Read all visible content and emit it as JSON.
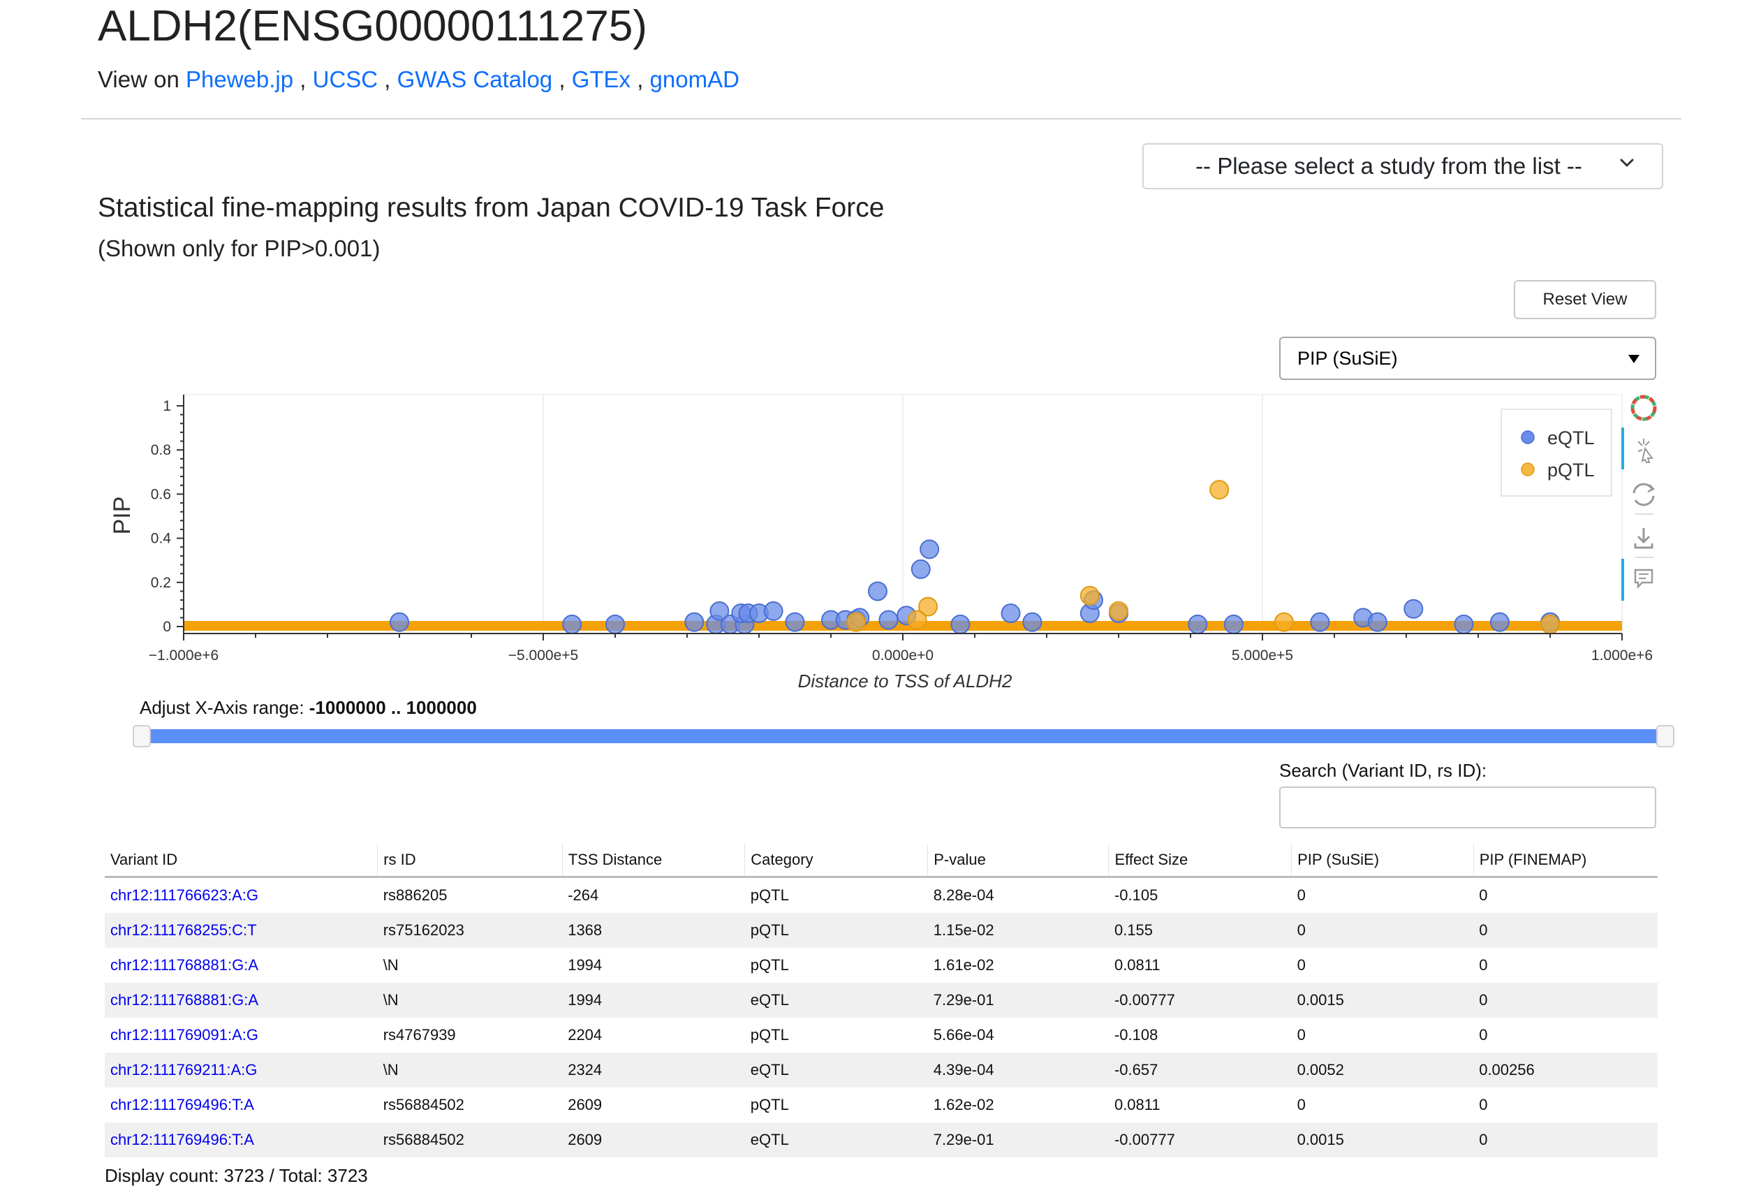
{
  "page": {
    "title": "ALDH2(ENSG00000111275)",
    "view_on": {
      "prefix": "View on",
      "links": [
        "Pheweb.jp",
        "UCSC",
        "GWAS Catalog",
        "GTEx",
        "gnomAD"
      ],
      "separator": ","
    }
  },
  "study_select": {
    "value": "-- Please select a study from the list --"
  },
  "section": {
    "title": "Statistical fine-mapping results from Japan COVID-19 Task Force",
    "subtitle": "(Shown only for PIP>0.001)"
  },
  "controls": {
    "reset_label": "Reset View",
    "metric_value": "PIP (SuSiE)",
    "xrange_prefix": "Adjust X-Axis range:",
    "xrange_value": "-1000000 .. 1000000",
    "search_label": "Search (Variant ID, rs ID):",
    "search_value": ""
  },
  "chart_data": {
    "type": "scatter",
    "xlabel": "Distance to TSS of ALDH2",
    "ylabel": "PIP",
    "xlim": [
      -1000000,
      1000000
    ],
    "ylim": [
      0,
      1
    ],
    "x_ticks": [
      "−1.000e+6",
      "−5.000e+5",
      "0.000e+0",
      "5.000e+5",
      "1.000e+6"
    ],
    "y_ticks": [
      "0",
      "0.2",
      "0.4",
      "0.6",
      "0.8",
      "1"
    ],
    "legend_position": "top-right",
    "colors": {
      "eQTL": "#6a8ce8",
      "pQTL": "#f5a623"
    },
    "series": [
      {
        "name": "eQTL",
        "points": [
          [
            -700000,
            0.02
          ],
          [
            -460000,
            0.01
          ],
          [
            -400000,
            0.01
          ],
          [
            -290000,
            0.02
          ],
          [
            -260000,
            0.01
          ],
          [
            -240000,
            0.01
          ],
          [
            -220000,
            0.01
          ],
          [
            -255000,
            0.07
          ],
          [
            -225000,
            0.06
          ],
          [
            -215000,
            0.06
          ],
          [
            -200000,
            0.06
          ],
          [
            -180000,
            0.07
          ],
          [
            -150000,
            0.02
          ],
          [
            -100000,
            0.03
          ],
          [
            -80000,
            0.03
          ],
          [
            -65000,
            0.03
          ],
          [
            -60000,
            0.04
          ],
          [
            -35000,
            0.16
          ],
          [
            -20000,
            0.03
          ],
          [
            5000,
            0.05
          ],
          [
            25000,
            0.26
          ],
          [
            37000,
            0.35
          ],
          [
            80000,
            0.01
          ],
          [
            150000,
            0.06
          ],
          [
            180000,
            0.02
          ],
          [
            260000,
            0.06
          ],
          [
            265000,
            0.12
          ],
          [
            300000,
            0.06
          ],
          [
            410000,
            0.01
          ],
          [
            460000,
            0.01
          ],
          [
            580000,
            0.02
          ],
          [
            640000,
            0.04
          ],
          [
            660000,
            0.02
          ],
          [
            710000,
            0.08
          ],
          [
            780000,
            0.01
          ],
          [
            830000,
            0.02
          ],
          [
            900000,
            0.02
          ]
        ]
      },
      {
        "name": "pQTL",
        "points": [
          [
            440000,
            0.62
          ],
          [
            260000,
            0.14
          ],
          [
            300000,
            0.07
          ],
          [
            35000,
            0.09
          ],
          [
            20000,
            0.03
          ],
          [
            -65000,
            0.02
          ],
          [
            530000,
            0.02
          ],
          [
            900000,
            0.01
          ]
        ]
      }
    ]
  },
  "table": {
    "columns": [
      "Variant ID",
      "rs ID",
      "TSS Distance",
      "Category",
      "P-value",
      "Effect Size",
      "PIP (SuSiE)",
      "PIP (FINEMAP)"
    ],
    "rows": [
      [
        "chr12:111766623:A:G",
        "rs886205",
        "-264",
        "pQTL",
        "8.28e-04",
        "-0.105",
        "0",
        "0"
      ],
      [
        "chr12:111768255:C:T",
        "rs75162023",
        "1368",
        "pQTL",
        "1.15e-02",
        "0.155",
        "0",
        "0"
      ],
      [
        "chr12:111768881:G:A",
        "\\N",
        "1994",
        "pQTL",
        "1.61e-02",
        "0.0811",
        "0",
        "0"
      ],
      [
        "chr12:111768881:G:A",
        "\\N",
        "1994",
        "eQTL",
        "7.29e-01",
        "-0.00777",
        "0.0015",
        "0"
      ],
      [
        "chr12:111769091:A:G",
        "rs4767939",
        "2204",
        "pQTL",
        "5.66e-04",
        "-0.108",
        "0",
        "0"
      ],
      [
        "chr12:111769211:A:G",
        "\\N",
        "2324",
        "eQTL",
        "4.39e-04",
        "-0.657",
        "0.0052",
        "0.00256"
      ],
      [
        "chr12:111769496:T:A",
        "rs56884502",
        "2609",
        "pQTL",
        "1.62e-02",
        "0.0811",
        "0",
        "0"
      ],
      [
        "chr12:111769496:T:A",
        "rs56884502",
        "2609",
        "eQTL",
        "7.29e-01",
        "-0.00777",
        "0.0015",
        "0"
      ]
    ],
    "display_count": "Display count: 3723 / Total: 3723"
  },
  "toolbar": {
    "icons": [
      "bokeh-logo-icon",
      "box-select-icon",
      "reset-icon",
      "save-icon",
      "hover-icon"
    ]
  }
}
